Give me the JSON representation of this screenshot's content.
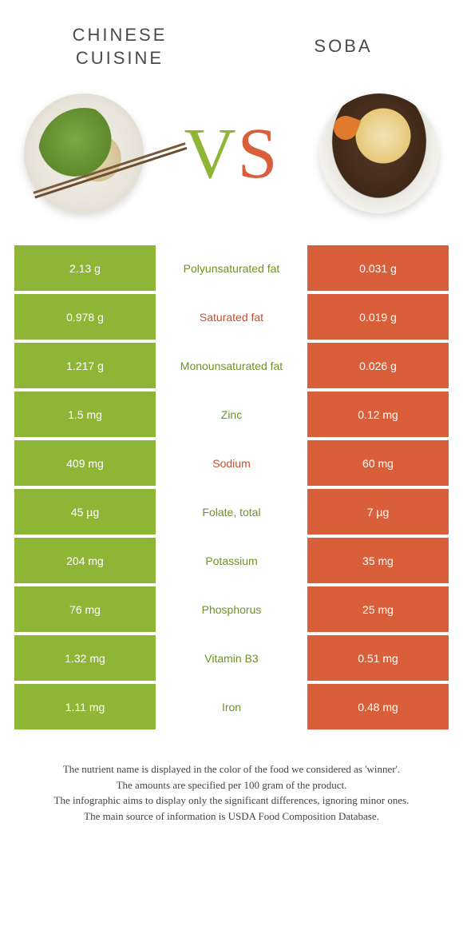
{
  "header": {
    "left_title": "Chinese cuisine",
    "right_title": "Soba",
    "vs_v": "V",
    "vs_s": "S"
  },
  "colors": {
    "left": "#8fb536",
    "right": "#d95f3a",
    "green_text": "#6f9128",
    "orange_text": "#c25232"
  },
  "rows": [
    {
      "left": "2.13 g",
      "label": "Polyunsaturated fat",
      "right": "0.031 g",
      "label_color": "#6f9128"
    },
    {
      "left": "0.978 g",
      "label": "Saturated fat",
      "right": "0.019 g",
      "label_color": "#c25232"
    },
    {
      "left": "1.217 g",
      "label": "Monounsaturated fat",
      "right": "0.026 g",
      "label_color": "#6f9128"
    },
    {
      "left": "1.5 mg",
      "label": "Zinc",
      "right": "0.12 mg",
      "label_color": "#6f9128"
    },
    {
      "left": "409 mg",
      "label": "Sodium",
      "right": "60 mg",
      "label_color": "#c25232"
    },
    {
      "left": "45 µg",
      "label": "Folate, total",
      "right": "7 µg",
      "label_color": "#6f9128"
    },
    {
      "left": "204 mg",
      "label": "Potassium",
      "right": "35 mg",
      "label_color": "#6f9128"
    },
    {
      "left": "76 mg",
      "label": "Phosphorus",
      "right": "25 mg",
      "label_color": "#6f9128"
    },
    {
      "left": "1.32 mg",
      "label": "Vitamin B3",
      "right": "0.51 mg",
      "label_color": "#6f9128"
    },
    {
      "left": "1.11 mg",
      "label": "Iron",
      "right": "0.48 mg",
      "label_color": "#6f9128"
    }
  ],
  "footnote": {
    "l1": "The nutrient name is displayed in the color of the food we considered as 'winner'.",
    "l2": "The amounts are specified per 100 gram of the product.",
    "l3": "The infographic aims to display only the significant differences, ignoring minor ones.",
    "l4": "The main source of information is USDA Food Composition Database."
  }
}
